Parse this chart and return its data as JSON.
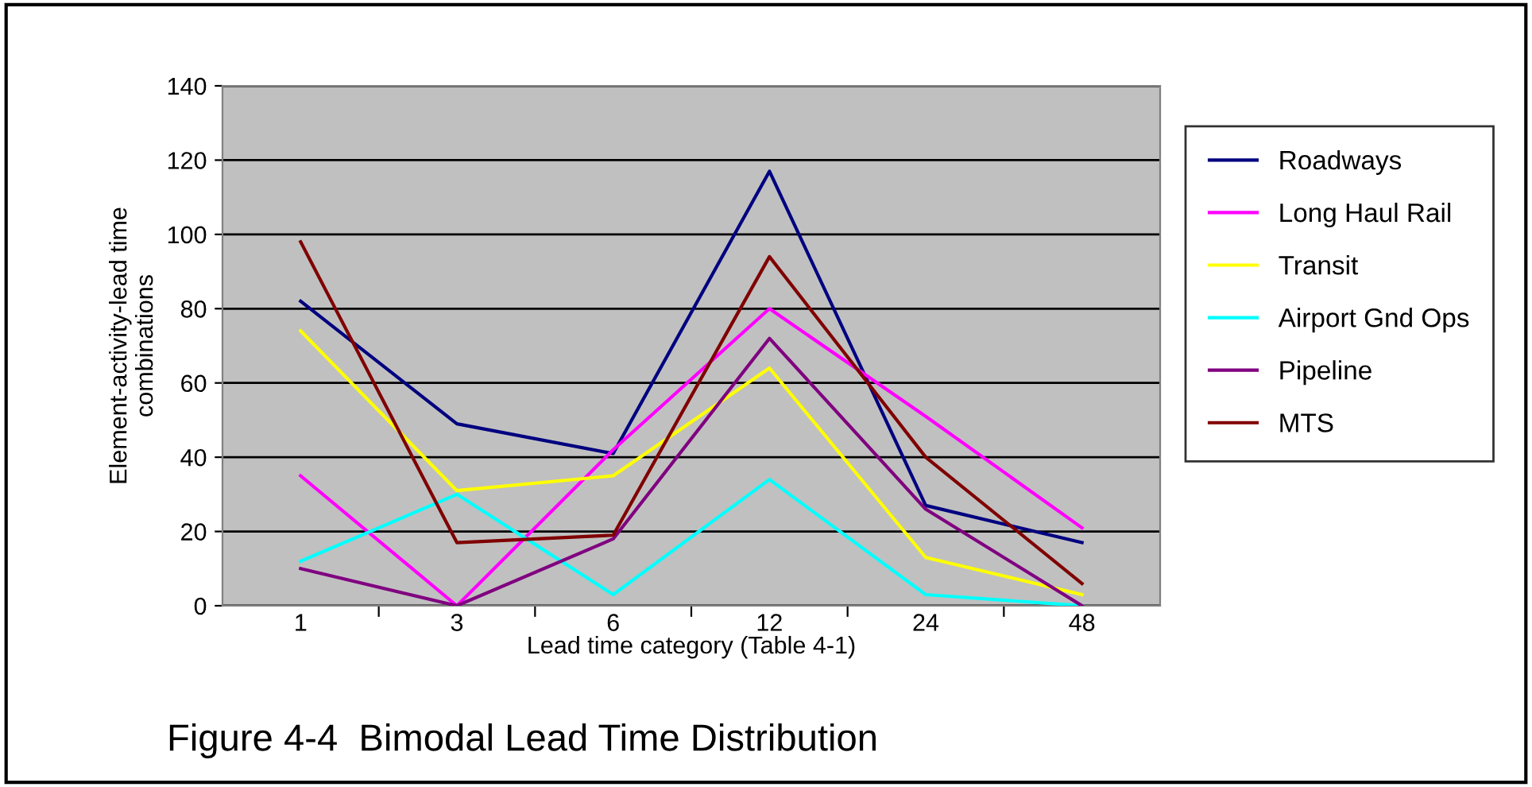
{
  "chart_data": {
    "type": "line",
    "title": "Figure 4-4  Bimodal Lead Time Distribution",
    "xlabel": "Lead time category (Table 4-1)",
    "ylabel": "Element-activity-lead time\ncombinations",
    "categories": [
      "1",
      "3",
      "6",
      "12",
      "24",
      "48"
    ],
    "series": [
      {
        "name": "Roadways",
        "color": "#000080",
        "values": [
          82,
          49,
          41,
          117,
          27,
          17
        ]
      },
      {
        "name": "Long Haul Rail",
        "color": "#ff00ff",
        "values": [
          35,
          0,
          42,
          80,
          51,
          21
        ]
      },
      {
        "name": "Transit",
        "color": "#ffff00",
        "values": [
          74,
          31,
          35,
          64,
          13,
          3
        ]
      },
      {
        "name": "Airport Gnd Ops",
        "color": "#00ffff",
        "values": [
          12,
          30,
          3,
          34,
          3,
          0
        ]
      },
      {
        "name": "Pipeline",
        "color": "#800080",
        "values": [
          10,
          0,
          18,
          72,
          26,
          0
        ]
      },
      {
        "name": "MTS",
        "color": "#800000",
        "values": [
          98,
          17,
          19,
          94,
          40,
          6
        ]
      }
    ],
    "ylim": [
      0,
      140
    ],
    "yticks": [
      0,
      20,
      40,
      60,
      80,
      100,
      120,
      140
    ],
    "grid": "y",
    "legend": "right",
    "marker": "none",
    "line_style": "solid"
  }
}
